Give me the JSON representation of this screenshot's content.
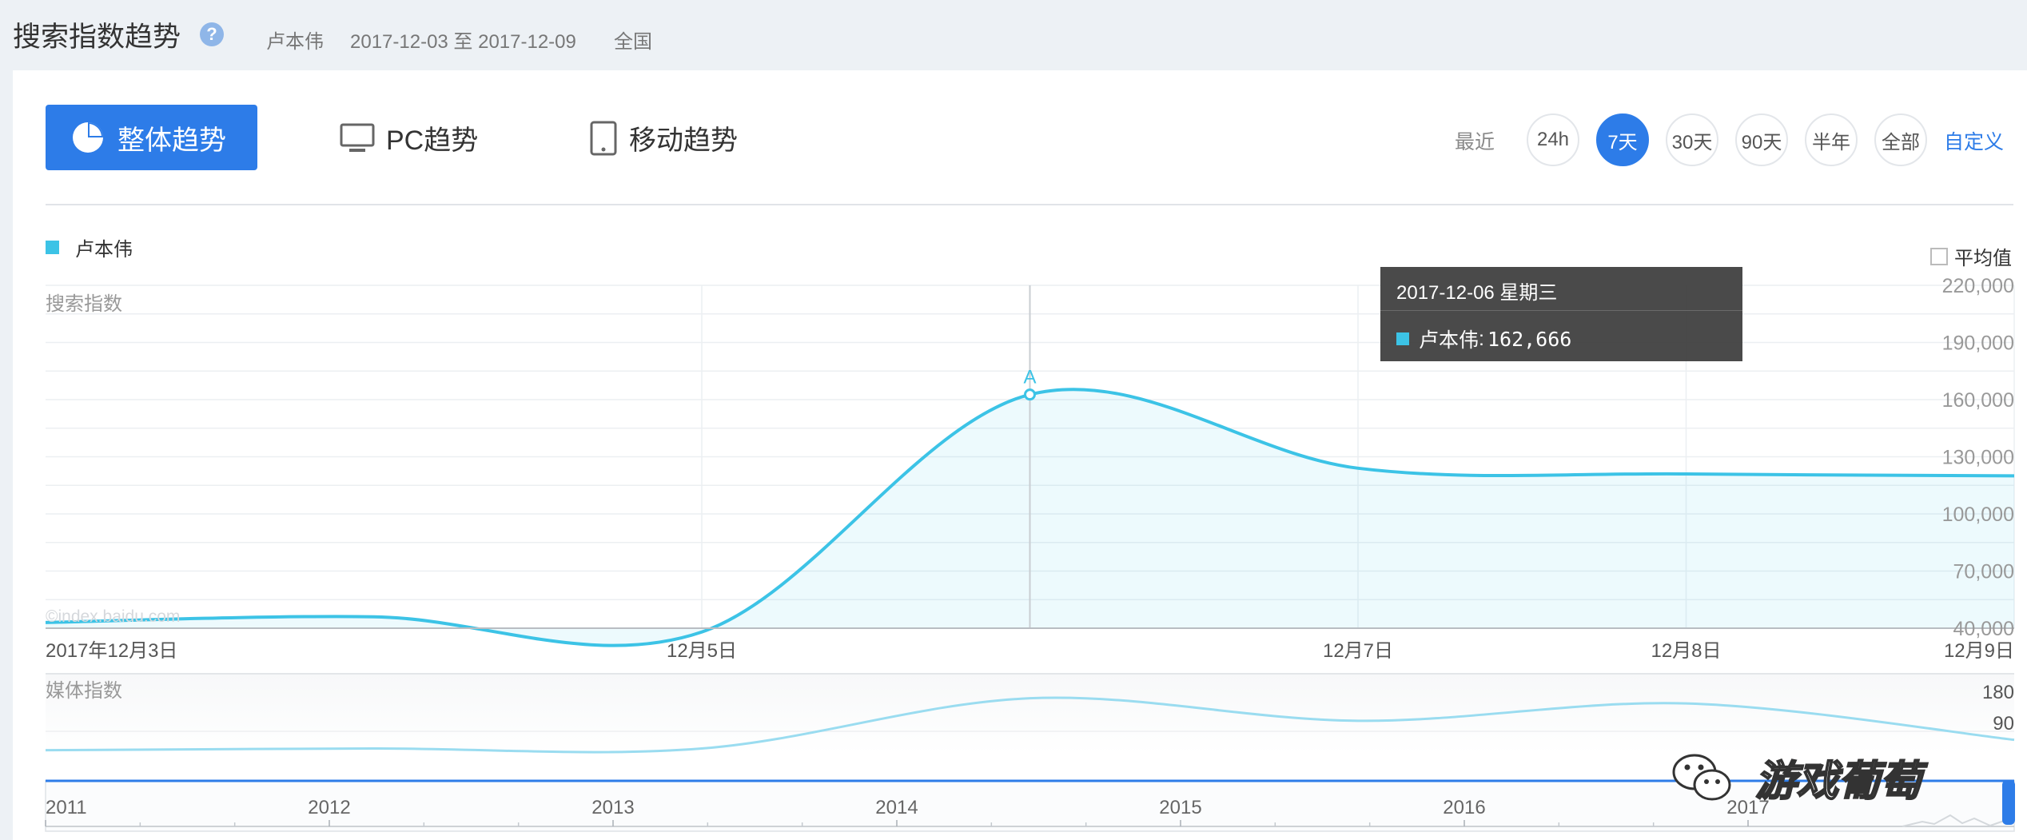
{
  "header": {
    "title": "搜索指数趋势",
    "help_icon": "question-icon",
    "keyword": "卢本伟",
    "date_range": "2017-12-03 至 2017-12-09",
    "region": "全国"
  },
  "tabs": [
    {
      "label": "整体趋势",
      "icon": "pie-icon",
      "active": true
    },
    {
      "label": "PC趋势",
      "icon": "monitor-icon",
      "active": false
    },
    {
      "label": "移动趋势",
      "icon": "tablet-icon",
      "active": false
    }
  ],
  "range": {
    "label": "最近",
    "options": [
      "24h",
      "7天",
      "30天",
      "90天",
      "半年",
      "全部"
    ],
    "selected": "7天",
    "custom_label": "自定义"
  },
  "legend": {
    "series_name": "卢本伟",
    "color": "#3cc3e6"
  },
  "average_toggle": {
    "label": "平均值",
    "checked": false
  },
  "tooltip": {
    "date": "2017-12-06 星期三",
    "series": "卢本伟",
    "value": "162,666"
  },
  "watermarks": {
    "site": "©index.baidu.com",
    "overlay": "游戏葡萄"
  },
  "colors": {
    "accent": "#2d7ce8",
    "series": "#3cc3e6",
    "media_series": "#9adcf0"
  },
  "chart_data": [
    {
      "type": "area",
      "ylabel": "搜索指数",
      "x": [
        "2017-12-03",
        "2017-12-04",
        "2017-12-05",
        "2017-12-06",
        "2017-12-07",
        "2017-12-08",
        "2017-12-09"
      ],
      "xtick_labels": [
        "2017年12月3日",
        "12月5日",
        "12月7日",
        "12月8日",
        "12月9日"
      ],
      "xtick_positions": [
        "2017-12-03",
        "2017-12-05",
        "2017-12-07",
        "2017-12-08",
        "2017-12-09"
      ],
      "series": [
        {
          "name": "卢本伟",
          "values": [
            43000,
            46000,
            38000,
            162666,
            124000,
            121000,
            120000
          ]
        }
      ],
      "yticks": [
        40000,
        70000,
        100000,
        130000,
        160000,
        190000,
        220000
      ],
      "ytick_labels": [
        "40,000",
        "70,000",
        "100,000",
        "130,000",
        "160,000",
        "190,000",
        "220,000"
      ],
      "ylim": [
        40000,
        220000
      ],
      "annotation": {
        "label": "A",
        "x": "2017-12-06"
      },
      "grid": true
    },
    {
      "type": "line",
      "ylabel": "媒体指数",
      "yticks": [
        90,
        180
      ],
      "ytick_labels": [
        "90",
        "180"
      ],
      "ylim": [
        0,
        180
      ],
      "series": [
        {
          "values": [
            10,
            15,
            15,
            160,
            95,
            145,
            40
          ]
        }
      ]
    }
  ],
  "timeline": {
    "years": [
      "2011",
      "2012",
      "2013",
      "2014",
      "2015",
      "2016",
      "2017"
    ]
  }
}
